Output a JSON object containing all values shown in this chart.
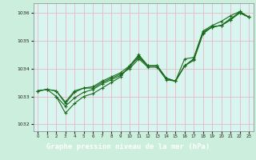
{
  "title": "Graphe pression niveau de la mer (hPa)",
  "bg_color": "#cceedd",
  "plot_bg_color": "#d8f5f0",
  "grid_color": "#e8b8c8",
  "line_color": "#1a6b1a",
  "title_bg": "#2d6b3a",
  "title_fg": "#ffffff",
  "xlim": [
    -0.5,
    23.5
  ],
  "ylim": [
    1031.75,
    1036.35
  ],
  "yticks": [
    1032,
    1033,
    1034,
    1035,
    1036
  ],
  "xticks": [
    0,
    1,
    2,
    3,
    4,
    5,
    6,
    7,
    8,
    9,
    10,
    11,
    12,
    13,
    14,
    15,
    16,
    17,
    18,
    19,
    20,
    21,
    22,
    23
  ],
  "line1": {
    "x": [
      0,
      1,
      2,
      3,
      4,
      5,
      6,
      7,
      8,
      9,
      10,
      11,
      12,
      13,
      14,
      15,
      16,
      17,
      18,
      19,
      20,
      21,
      22,
      23
    ],
    "y": [
      1033.2,
      1033.25,
      1033.2,
      1032.75,
      1033.15,
      1033.3,
      1033.3,
      1033.5,
      1033.65,
      1033.8,
      1034.0,
      1034.35,
      1034.05,
      1034.05,
      1033.6,
      1033.55,
      1034.1,
      1034.3,
      1035.25,
      1035.5,
      1035.55,
      1035.75,
      1036.0,
      1035.85
    ]
  },
  "line2": {
    "x": [
      0,
      1,
      2,
      3,
      4,
      5,
      6,
      7,
      8,
      9,
      10,
      11,
      12,
      13,
      14,
      15,
      16,
      17,
      18,
      19,
      20,
      21,
      22,
      23
    ],
    "y": [
      1033.2,
      1033.25,
      1033.0,
      1032.4,
      1032.75,
      1033.0,
      1033.1,
      1033.3,
      1033.5,
      1033.7,
      1034.1,
      1034.5,
      1034.1,
      1034.1,
      1033.65,
      1033.55,
      1034.35,
      1034.4,
      1035.35,
      1035.55,
      1035.7,
      1035.9,
      1036.05,
      1035.85
    ]
  },
  "line3": {
    "x": [
      2,
      3,
      4,
      5,
      6,
      7,
      8,
      9,
      10,
      11,
      12,
      13,
      14,
      15,
      16,
      17,
      18,
      19,
      20,
      21,
      22,
      23
    ],
    "y": [
      1033.0,
      1032.65,
      1032.95,
      1033.15,
      1033.25,
      1033.45,
      1033.6,
      1033.75,
      1034.05,
      1034.45,
      1034.1,
      1034.1,
      1033.65,
      1033.55,
      1034.1,
      1034.35,
      1035.3,
      1035.5,
      1035.55,
      1035.75,
      1036.05,
      1035.85
    ]
  },
  "line4": {
    "x": [
      0,
      1,
      2,
      3,
      4,
      5,
      6,
      7,
      8,
      9,
      10,
      11,
      12,
      13,
      14,
      15,
      16,
      17,
      18,
      19,
      20,
      21,
      22,
      23
    ],
    "y": [
      1033.2,
      1033.25,
      1033.2,
      1032.8,
      1033.2,
      1033.3,
      1033.35,
      1033.55,
      1033.7,
      1033.85,
      1034.1,
      1034.4,
      1034.1,
      1034.1,
      1033.65,
      1033.55,
      1034.1,
      1034.35,
      1035.3,
      1035.5,
      1035.55,
      1035.8,
      1036.0,
      1035.85
    ]
  }
}
